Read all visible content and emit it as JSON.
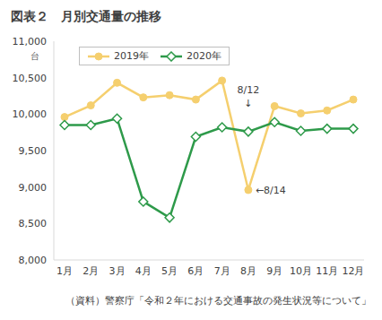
{
  "chart_data": {
    "type": "line",
    "title": "図表２　月別交通量の推移",
    "ylabel": "台",
    "categories": [
      "1月",
      "2月",
      "3月",
      "4月",
      "5月",
      "6月",
      "7月",
      "8月",
      "9月",
      "10月",
      "11月",
      "12月"
    ],
    "series": [
      {
        "name": "2019年",
        "color": "#f5cf6e",
        "marker": "circle",
        "values": [
          9960,
          10120,
          10430,
          10230,
          10260,
          10200,
          10460,
          8960,
          10110,
          10010,
          10050,
          10200
        ]
      },
      {
        "name": "2020年",
        "color": "#2e9a4a",
        "marker": "diamond",
        "values": [
          9850,
          9850,
          9940,
          8800,
          8580,
          9690,
          9820,
          9760,
          9890,
          9770,
          9800,
          9800
        ]
      }
    ],
    "ylim": [
      8000,
      11000
    ],
    "yticks": [
      {
        "value": 8000,
        "label": "8,000"
      },
      {
        "value": 8500,
        "label": "8,500"
      },
      {
        "value": 9000,
        "label": "9,000"
      },
      {
        "value": 9500,
        "label": "9,500"
      },
      {
        "value": 10000,
        "label": "10,000"
      },
      {
        "value": 10500,
        "label": "10,500"
      },
      {
        "value": 11000,
        "label": "11,000"
      }
    ],
    "grid": false,
    "legend": "upper left",
    "annotations": [
      {
        "text": "8/12",
        "category": "8月",
        "value": 10340,
        "side": "top"
      },
      {
        "text": "↓",
        "category": "8月",
        "value": 10150,
        "side": "top"
      },
      {
        "text": "←8/14",
        "category": "8月",
        "value": 8960,
        "side": "right"
      }
    ],
    "source": "（資料）警察庁「令和２年における交通事故の発生状況等について」"
  }
}
